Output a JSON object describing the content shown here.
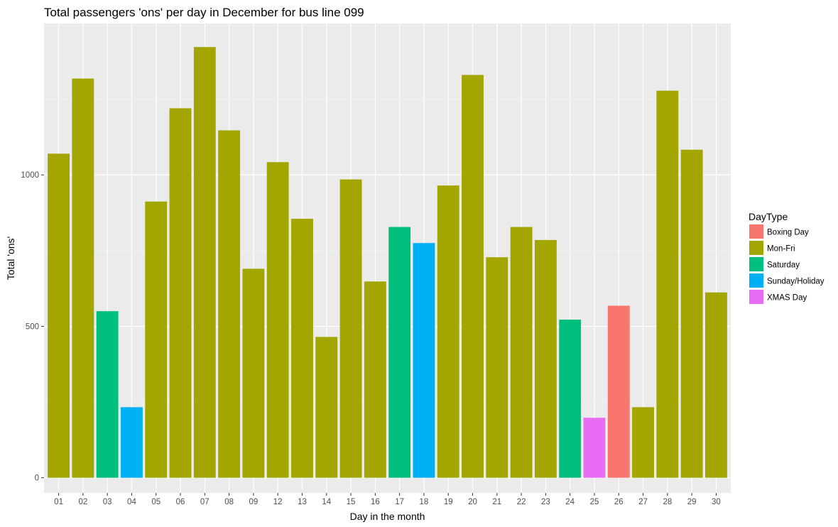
{
  "chart_data": {
    "type": "bar",
    "title": "Total passengers 'ons' per day in December for bus line 099",
    "xlabel": "Day in the month",
    "ylabel": "Total 'ons'",
    "ylim": [
      -50,
      1500
    ],
    "yticks": [
      0,
      500,
      1000
    ],
    "yminor": [
      250,
      750,
      1250
    ],
    "grid": true,
    "legend": {
      "title": "DayType",
      "position": "right",
      "entries": [
        {
          "label": "Boxing Day",
          "color": "#F8766D"
        },
        {
          "label": "Mon-Fri",
          "color": "#A3A500"
        },
        {
          "label": "Saturday",
          "color": "#00BF7D"
        },
        {
          "label": "Sunday/Holiday",
          "color": "#00B0F6"
        },
        {
          "label": "XMAS Day",
          "color": "#E76BF3"
        }
      ]
    },
    "categories": [
      "01",
      "02",
      "03",
      "04",
      "05",
      "06",
      "07",
      "08",
      "09",
      "12",
      "13",
      "14",
      "15",
      "16",
      "17",
      "18",
      "19",
      "20",
      "21",
      "22",
      "23",
      "24",
      "25",
      "26",
      "27",
      "28",
      "29",
      "30"
    ],
    "values": [
      1070,
      1318,
      550,
      233,
      912,
      1220,
      1422,
      1147,
      690,
      1042,
      855,
      465,
      985,
      648,
      828,
      775,
      965,
      1330,
      728,
      828,
      785,
      522,
      198,
      568,
      233,
      1278,
      1083,
      612
    ],
    "daytypes": [
      "Mon-Fri",
      "Mon-Fri",
      "Saturday",
      "Sunday/Holiday",
      "Mon-Fri",
      "Mon-Fri",
      "Mon-Fri",
      "Mon-Fri",
      "Mon-Fri",
      "Mon-Fri",
      "Mon-Fri",
      "Mon-Fri",
      "Mon-Fri",
      "Mon-Fri",
      "Saturday",
      "Sunday/Holiday",
      "Mon-Fri",
      "Mon-Fri",
      "Mon-Fri",
      "Mon-Fri",
      "Mon-Fri",
      "Saturday",
      "XMAS Day",
      "Boxing Day",
      "Mon-Fri",
      "Mon-Fri",
      "Mon-Fri",
      "Mon-Fri"
    ]
  },
  "colors": {
    "panel_background": "#EBEBEB",
    "grid_major": "#FFFFFF",
    "grid_minor": "#F5F5F5"
  }
}
